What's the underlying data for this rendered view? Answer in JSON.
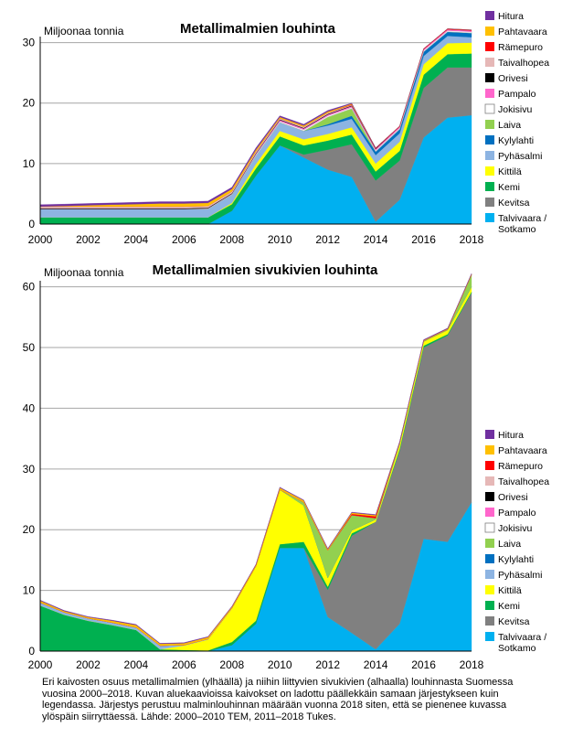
{
  "chart_data": [
    {
      "type": "area",
      "stacked": true,
      "title": "Metallimalmien louhinta",
      "ylabel": "Miljoonaa tonnia",
      "xlabel": "",
      "x": [
        2000,
        2001,
        2002,
        2003,
        2004,
        2005,
        2006,
        2007,
        2008,
        2009,
        2010,
        2011,
        2012,
        2013,
        2014,
        2015,
        2016,
        2017,
        2018
      ],
      "x_ticks": [
        2000,
        2002,
        2004,
        2006,
        2008,
        2010,
        2012,
        2014,
        2016,
        2018
      ],
      "y_ticks": [
        0,
        10,
        20,
        30
      ],
      "ylim": [
        0,
        31
      ],
      "xlim": [
        2000,
        2018
      ],
      "grid": "horizontal",
      "legend_position": "right",
      "series": [
        {
          "name": "Talvivaara / Sotkamo",
          "color": "#00b0f0",
          "values": [
            0,
            0,
            0,
            0,
            0,
            0,
            0,
            0,
            2.2,
            8,
            13,
            11,
            9,
            7.8,
            0.4,
            4,
            14.3,
            17.6,
            18
          ]
        },
        {
          "name": "Kevitsa",
          "color": "#808080",
          "values": [
            0,
            0,
            0,
            0,
            0,
            0,
            0,
            0,
            0,
            0,
            0,
            0.5,
            3.3,
            5.4,
            6.8,
            6.5,
            8.2,
            8.3,
            7.9
          ]
        },
        {
          "name": "Kemi",
          "color": "#00b050",
          "values": [
            1.1,
            1.1,
            1.1,
            1.1,
            1.1,
            1.1,
            1.1,
            1.1,
            1.1,
            1.2,
            1.5,
            1.5,
            1.5,
            1.6,
            1.5,
            1.6,
            2.2,
            2.2,
            2.3
          ]
        },
        {
          "name": "Kittilä",
          "color": "#ffff00",
          "values": [
            0,
            0,
            0,
            0,
            0,
            0,
            0,
            0,
            0.2,
            0.7,
            0.9,
            1,
            1.1,
            1.2,
            1.3,
            1.5,
            1.7,
            1.8,
            1.8
          ]
        },
        {
          "name": "Pyhäsalmi",
          "color": "#8db4e2",
          "values": [
            1.4,
            1.4,
            1.4,
            1.4,
            1.4,
            1.4,
            1.4,
            1.4,
            1.4,
            1.4,
            1.4,
            1.4,
            1.4,
            1.4,
            1.4,
            1.4,
            1.4,
            1.2,
            0.9
          ]
        },
        {
          "name": "Kylylahti",
          "color": "#0070c0",
          "values": [
            0,
            0,
            0,
            0,
            0,
            0,
            0,
            0,
            0,
            0,
            0,
            0,
            0.2,
            0.5,
            0.6,
            0.7,
            0.7,
            0.7,
            0.7
          ]
        },
        {
          "name": "Laiva",
          "color": "#92d050",
          "values": [
            0,
            0,
            0,
            0,
            0,
            0,
            0,
            0,
            0,
            0,
            0,
            0,
            1.2,
            1.2,
            0,
            0,
            0,
            0,
            0
          ]
        },
        {
          "name": "Jokisivu",
          "color": "#ffffff",
          "values": [
            0,
            0,
            0,
            0,
            0,
            0,
            0,
            0.1,
            0.1,
            0.2,
            0.2,
            0.2,
            0.2,
            0.2,
            0.2,
            0.2,
            0.2,
            0.2,
            0.2
          ]
        },
        {
          "name": "Pampalo",
          "color": "#ff66cc",
          "values": [
            0,
            0,
            0,
            0,
            0,
            0,
            0,
            0,
            0,
            0.1,
            0.2,
            0.2,
            0.2,
            0.2,
            0.2,
            0.2,
            0.2,
            0.2,
            0.2
          ]
        },
        {
          "name": "Orivesi",
          "color": "#000000",
          "values": [
            0.1,
            0.1,
            0.1,
            0.1,
            0.1,
            0.1,
            0.1,
            0.1,
            0.1,
            0.1,
            0.1,
            0.1,
            0.1,
            0.1,
            0.1,
            0,
            0,
            0,
            0
          ]
        },
        {
          "name": "Taivalhopea",
          "color": "#e6b8b7",
          "values": [
            0.3,
            0.3,
            0.3,
            0.3,
            0.3,
            0.3,
            0.3,
            0.3,
            0.3,
            0.3,
            0.2,
            0.2,
            0.2,
            0.1,
            0,
            0,
            0,
            0,
            0
          ]
        },
        {
          "name": "Rämepuro",
          "color": "#ff0000",
          "values": [
            0,
            0,
            0,
            0,
            0,
            0,
            0,
            0,
            0,
            0,
            0,
            0,
            0,
            0.1,
            0.1,
            0.1,
            0.1,
            0.1,
            0.1
          ]
        },
        {
          "name": "Pahtavaara",
          "color": "#ffc000",
          "values": [
            0,
            0.1,
            0.2,
            0.3,
            0.4,
            0.5,
            0.5,
            0.5,
            0.4,
            0.3,
            0.2,
            0.2,
            0.2,
            0.1,
            0,
            0,
            0,
            0,
            0
          ]
        },
        {
          "name": "Hitura",
          "color": "#7030a0",
          "values": [
            0.3,
            0.3,
            0.3,
            0.3,
            0.3,
            0.3,
            0.3,
            0.3,
            0.3,
            0.3,
            0.2,
            0.2,
            0.2,
            0.1,
            0,
            0,
            0,
            0,
            0
          ]
        }
      ]
    },
    {
      "type": "area",
      "stacked": true,
      "title": "Metallimalmien sivukivien louhinta",
      "ylabel": "Miljoonaa tonnia",
      "xlabel": "",
      "x": [
        2000,
        2001,
        2002,
        2003,
        2004,
        2005,
        2006,
        2007,
        2008,
        2009,
        2010,
        2011,
        2012,
        2013,
        2014,
        2015,
        2016,
        2017,
        2018
      ],
      "x_ticks": [
        2000,
        2002,
        2004,
        2006,
        2008,
        2010,
        2012,
        2014,
        2016,
        2018
      ],
      "y_ticks": [
        0,
        10,
        20,
        30,
        40,
        50,
        60
      ],
      "ylim": [
        0,
        61
      ],
      "xlim": [
        2000,
        2018
      ],
      "grid": "horizontal",
      "legend_position": "right",
      "series": [
        {
          "name": "Talvivaara / Sotkamo",
          "color": "#00b0f0",
          "values": [
            0,
            0,
            0,
            0,
            0,
            0,
            0,
            0,
            1,
            4.5,
            17,
            17,
            5.6,
            3,
            0.3,
            4.5,
            18.5,
            18,
            24.5
          ]
        },
        {
          "name": "Kevitsa",
          "color": "#808080",
          "values": [
            0,
            0,
            0,
            0,
            0,
            0,
            0,
            0,
            0,
            0,
            0,
            0,
            4.5,
            16,
            21,
            28.5,
            31.5,
            34,
            34.5
          ]
        },
        {
          "name": "Kemi",
          "color": "#00b050",
          "values": [
            7.5,
            6,
            5,
            4.3,
            3.5,
            0.3,
            0.2,
            0.1,
            0.5,
            0.5,
            0.6,
            1,
            0.5,
            0.4,
            0,
            0.3,
            0.3,
            0.2,
            0.2
          ]
        },
        {
          "name": "Kittilä",
          "color": "#ffff00",
          "values": [
            0,
            0,
            0,
            0,
            0,
            0,
            0.7,
            1.8,
            5.5,
            9,
            9,
            6,
            1.5,
            0.5,
            0.4,
            0.8,
            0.7,
            0.7,
            0.8
          ]
        },
        {
          "name": "Pyhäsalmi",
          "color": "#8db4e2",
          "values": [
            0.5,
            0.4,
            0.4,
            0.4,
            0.4,
            0.6,
            0.1,
            0.1,
            0.1,
            0,
            0,
            0,
            0,
            0,
            0,
            0,
            0,
            0,
            0
          ]
        },
        {
          "name": "Kylylahti",
          "color": "#0070c0",
          "values": [
            0,
            0,
            0,
            0,
            0,
            0,
            0,
            0,
            0,
            0,
            0,
            0,
            0,
            0,
            0,
            0,
            0,
            0,
            0
          ]
        },
        {
          "name": "Laiva",
          "color": "#92d050",
          "values": [
            0,
            0,
            0,
            0,
            0,
            0,
            0,
            0,
            0,
            0,
            0,
            0.5,
            4.5,
            2.5,
            0.2,
            0.2,
            0.1,
            0.1,
            2
          ]
        },
        {
          "name": "Jokisivu",
          "color": "#ffffff",
          "values": [
            0,
            0,
            0,
            0,
            0,
            0,
            0,
            0,
            0,
            0,
            0,
            0,
            0,
            0,
            0,
            0,
            0,
            0,
            0
          ]
        },
        {
          "name": "Pampalo",
          "color": "#ff66cc",
          "values": [
            0,
            0,
            0,
            0,
            0,
            0,
            0,
            0,
            0,
            0,
            0,
            0,
            0,
            0,
            0,
            0,
            0,
            0,
            0
          ]
        },
        {
          "name": "Orivesi",
          "color": "#000000",
          "values": [
            0,
            0,
            0,
            0,
            0,
            0,
            0,
            0,
            0,
            0,
            0,
            0,
            0,
            0,
            0,
            0,
            0,
            0,
            0
          ]
        },
        {
          "name": "Taivalhopea",
          "color": "#e6b8b7",
          "values": [
            0,
            0,
            0,
            0,
            0,
            0,
            0,
            0,
            0,
            0,
            0,
            0,
            0,
            0,
            0,
            0,
            0,
            0,
            0
          ]
        },
        {
          "name": "Rämepuro",
          "color": "#ff0000",
          "values": [
            0,
            0,
            0,
            0,
            0,
            0,
            0,
            0,
            0,
            0,
            0,
            0,
            0,
            0.2,
            0.3,
            0,
            0,
            0,
            0
          ]
        },
        {
          "name": "Pahtavaara",
          "color": "#ffc000",
          "values": [
            0.3,
            0.2,
            0.2,
            0.3,
            0.4,
            0.3,
            0.3,
            0.3,
            0.2,
            0.2,
            0.3,
            0.3,
            0.2,
            0.2,
            0.2,
            0.1,
            0.1,
            0.1,
            0.1
          ]
        },
        {
          "name": "Hitura",
          "color": "#7030a0",
          "values": [
            0.1,
            0.1,
            0.1,
            0.1,
            0.1,
            0.1,
            0.1,
            0.1,
            0.1,
            0.1,
            0.1,
            0.1,
            0.1,
            0.1,
            0.1,
            0.1,
            0.1,
            0.1,
            0.1
          ]
        }
      ]
    }
  ],
  "legend_items": [
    {
      "label": "Hitura",
      "color": "#7030a0"
    },
    {
      "label": "Pahtavaara",
      "color": "#ffc000"
    },
    {
      "label": "Rämepuro",
      "color": "#ff0000"
    },
    {
      "label": "Taivalhopea",
      "color": "#e6b8b7"
    },
    {
      "label": "Orivesi",
      "color": "#000000"
    },
    {
      "label": "Pampalo",
      "color": "#ff66cc"
    },
    {
      "label": "Jokisivu",
      "color": "#ffffff"
    },
    {
      "label": "Laiva",
      "color": "#92d050"
    },
    {
      "label": "Kylylahti",
      "color": "#0070c0"
    },
    {
      "label": "Pyhäsalmi",
      "color": "#8db4e2"
    },
    {
      "label": "Kittilä",
      "color": "#ffff00"
    },
    {
      "label": "Kemi",
      "color": "#00b050"
    },
    {
      "label": "Kevitsa",
      "color": "#808080"
    },
    {
      "label": "Talvivaara /",
      "label2": "Sotkamo",
      "color": "#00b0f0"
    }
  ],
  "caption": "Eri kaivosten osuus metallimalmien (ylhäällä) ja niihin liittyvien sivukivien (alhaalla) louhinnasta Suomessa vuosina 2000–2018. Kuvan aluekaavioissa kaivokset on ladottu päällekkäin samaan järjestykseen kuin legendassa. Järjestys perustuu malminlouhinnan määrään vuonna 2018 siten, että se pienenee kuvassa ylöspäin siirryttäessä. Lähde: 2000–2010 TEM, 2011–2018 Tukes."
}
